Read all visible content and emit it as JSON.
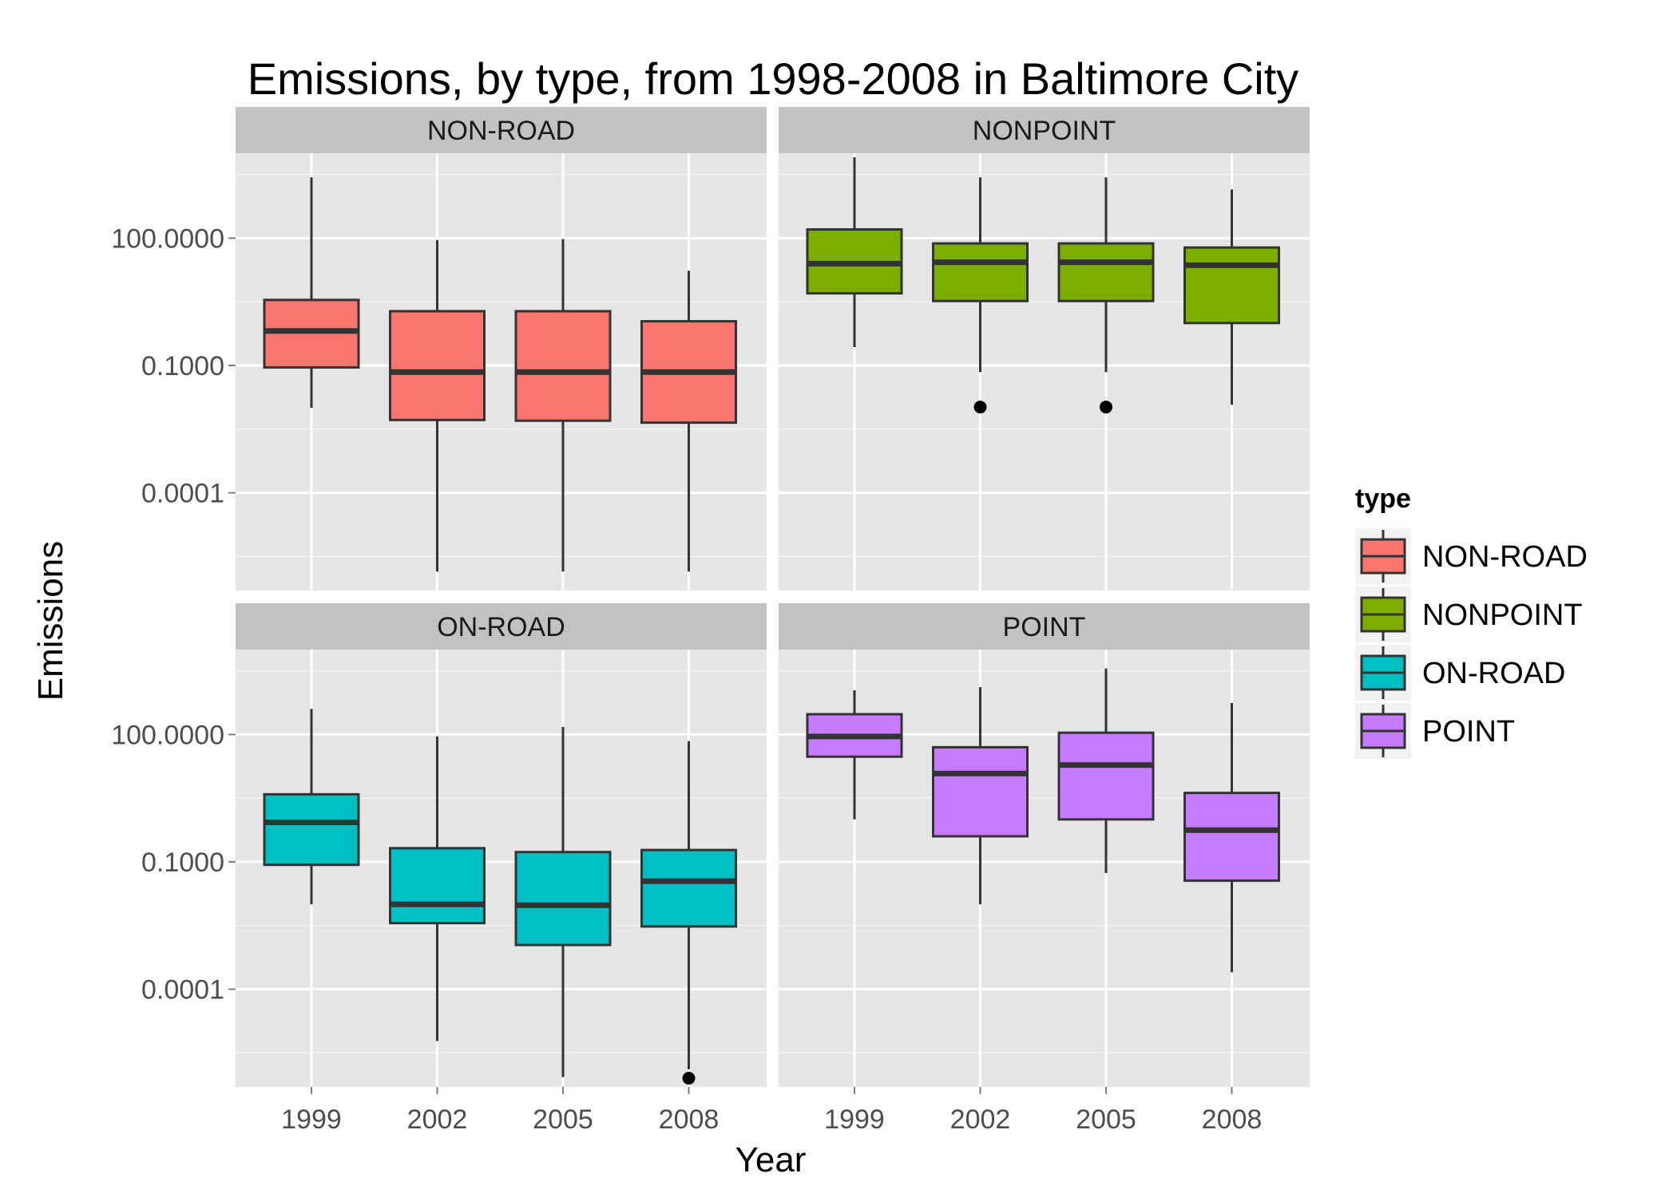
{
  "chart_data": {
    "type": "boxplot",
    "title": "Emissions, by type, from 1998-2008 in Baltimore City",
    "xlabel": "Year",
    "ylabel": "Emissions",
    "y_scale": "log10",
    "y_axis_range": [
      5e-07,
      10000
    ],
    "y_ticks": [
      {
        "value": 100,
        "label": "100.0000"
      },
      {
        "value": 0.1,
        "label": "0.1000"
      },
      {
        "value": 0.0001,
        "label": "0.0001"
      }
    ],
    "categories": [
      "1999",
      "2002",
      "2005",
      "2008"
    ],
    "facet_layout": "2x2 grid",
    "grid": true,
    "legend": {
      "title": "type",
      "position": "right",
      "entries": [
        "NON-ROAD",
        "NONPOINT",
        "ON-ROAD",
        "POINT"
      ]
    },
    "facets": [
      {
        "name": "NON-ROAD",
        "color": "#F8766D",
        "boxes": [
          {
            "year": "1999",
            "min": 0.01,
            "q1": 0.09,
            "median": 0.65,
            "q3": 3.5,
            "max": 2700,
            "outliers": []
          },
          {
            "year": "2002",
            "min": 1.4e-06,
            "q1": 0.0052,
            "median": 0.07,
            "q3": 1.9,
            "max": 90,
            "outliers": []
          },
          {
            "year": "2005",
            "min": 1.4e-06,
            "q1": 0.005,
            "median": 0.07,
            "q3": 1.9,
            "max": 95,
            "outliers": []
          },
          {
            "year": "2008",
            "min": 1.4e-06,
            "q1": 0.0045,
            "median": 0.07,
            "q3": 1.1,
            "max": 17,
            "outliers": []
          }
        ]
      },
      {
        "name": "NONPOINT",
        "color": "#7CAE00",
        "boxes": [
          {
            "year": "1999",
            "min": 0.27,
            "q1": 5.0,
            "median": 25,
            "q3": 160,
            "max": 8000,
            "outliers": []
          },
          {
            "year": "2002",
            "min": 0.07,
            "q1": 3.3,
            "median": 27,
            "q3": 75,
            "max": 2700,
            "outliers": [
              0.0105
            ]
          },
          {
            "year": "2005",
            "min": 0.07,
            "q1": 3.3,
            "median": 27,
            "q3": 75,
            "max": 2700,
            "outliers": [
              0.0105
            ]
          },
          {
            "year": "2008",
            "min": 0.012,
            "q1": 1.0,
            "median": 23,
            "q3": 60,
            "max": 1400,
            "outliers": []
          }
        ]
      },
      {
        "name": "ON-ROAD",
        "color": "#00BFC4",
        "boxes": [
          {
            "year": "1999",
            "min": 0.01,
            "q1": 0.085,
            "median": 0.85,
            "q3": 3.9,
            "max": 400,
            "outliers": []
          },
          {
            "year": "2002",
            "min": 6e-06,
            "q1": 0.0036,
            "median": 0.01,
            "q3": 0.21,
            "max": 90,
            "outliers": []
          },
          {
            "year": "2005",
            "min": 8.5e-07,
            "q1": 0.0011,
            "median": 0.0095,
            "q3": 0.17,
            "max": 150,
            "outliers": []
          },
          {
            "year": "2008",
            "min": 1.3e-06,
            "q1": 0.003,
            "median": 0.035,
            "q3": 0.19,
            "max": 70,
            "outliers": [
              8e-07
            ]
          }
        ]
      },
      {
        "name": "POINT",
        "color": "#C77CFF",
        "boxes": [
          {
            "year": "1999",
            "min": 1.0,
            "q1": 30,
            "median": 90,
            "q3": 300,
            "max": 1100,
            "outliers": []
          },
          {
            "year": "2002",
            "min": 0.01,
            "q1": 0.4,
            "median": 12,
            "q3": 50,
            "max": 1300,
            "outliers": []
          },
          {
            "year": "2005",
            "min": 0.0545,
            "q1": 1.0,
            "median": 19,
            "q3": 110,
            "max": 3600,
            "outliers": []
          },
          {
            "year": "2008",
            "min": 0.00025,
            "q1": 0.036,
            "median": 0.56,
            "q3": 4.2,
            "max": 550,
            "outliers": []
          }
        ]
      }
    ]
  }
}
